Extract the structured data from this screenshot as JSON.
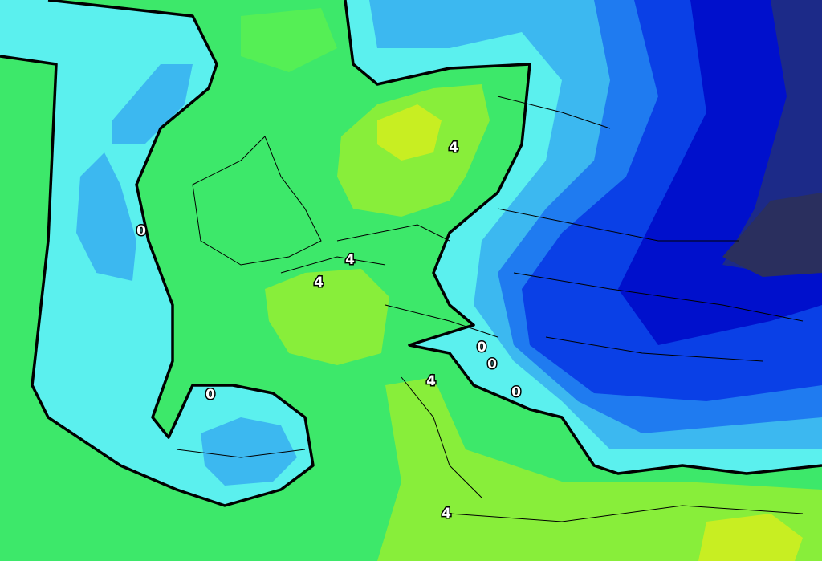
{
  "contour_labels": [
    "0",
    "4",
    "4",
    "4",
    "0",
    "0",
    "0",
    "0",
    "4",
    "4"
  ]
}
